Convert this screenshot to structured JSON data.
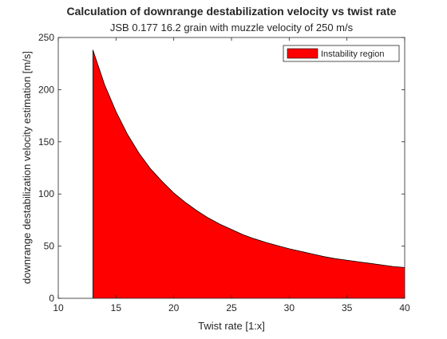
{
  "chart_data": {
    "type": "area",
    "title": "Calculation of downrange destabilization velocity vs twist rate",
    "subtitle": "JSB 0.177 16.2 grain with muzzle velocity of 250 m/s",
    "xlabel": "Twist rate [1:x]",
    "ylabel": "downrange destabilization velocity estimation [m/s]",
    "xlim": [
      10,
      40
    ],
    "ylim": [
      0,
      250
    ],
    "xticks": [
      10,
      15,
      20,
      25,
      30,
      35,
      40
    ],
    "yticks": [
      0,
      50,
      100,
      150,
      200,
      250
    ],
    "grid": false,
    "legend_position": "top-right",
    "series": [
      {
        "name": "Instability region",
        "color": "#ff0000",
        "x": [
          13,
          14,
          15,
          16,
          17,
          18,
          19,
          20,
          21,
          22,
          23,
          24,
          25,
          26,
          27,
          28,
          29,
          30,
          31,
          32,
          33,
          34,
          35,
          36,
          37,
          38,
          39,
          40
        ],
        "y": [
          238,
          205,
          179,
          157,
          139,
          124,
          112,
          101,
          92,
          84,
          77,
          71,
          66,
          61,
          57,
          53.5,
          50.5,
          47.5,
          45,
          42.5,
          40,
          38,
          36.5,
          35,
          33.5,
          32,
          30.5,
          29.5
        ]
      }
    ]
  }
}
